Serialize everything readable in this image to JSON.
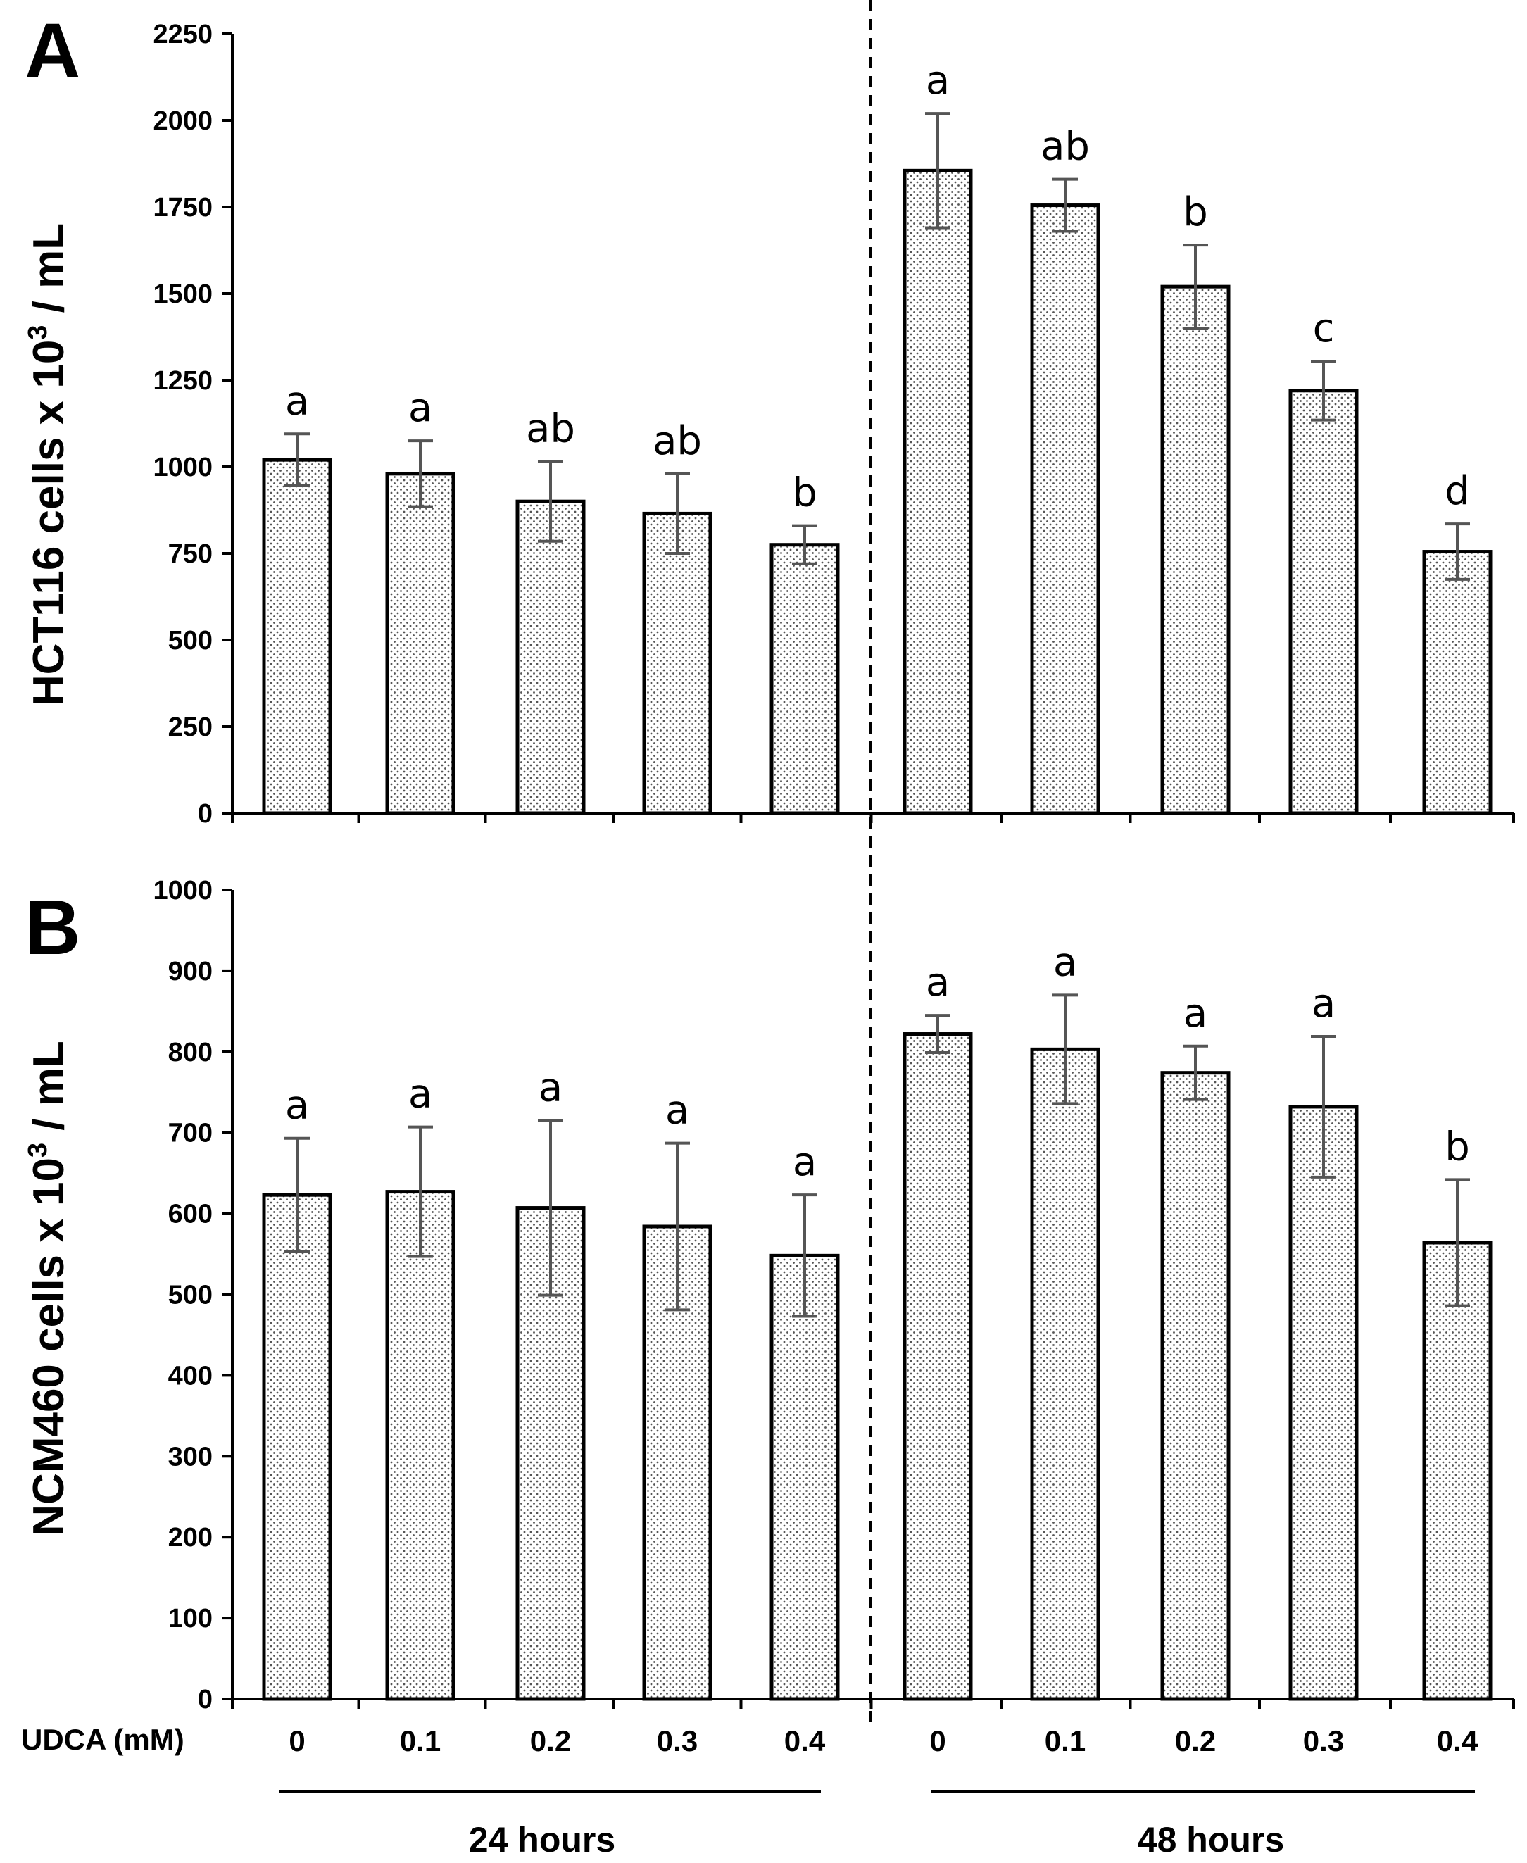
{
  "chart_data": [
    {
      "type": "bar",
      "panel_label": "A",
      "ylabel_main": "HCT116 cells x 10",
      "ylabel_sup": "3",
      "ylabel_tail": " / mL",
      "ylim": [
        0,
        2250
      ],
      "yticks": [
        "0",
        "250",
        "500",
        "750",
        "1000",
        "1250",
        "1500",
        "1750",
        "2000",
        "2250"
      ],
      "ytick_values": [
        0,
        250,
        500,
        750,
        1000,
        1250,
        1500,
        1750,
        2000,
        2250
      ],
      "categories": [
        "0",
        "0.1",
        "0.2",
        "0.3",
        "0.4",
        "0",
        "0.1",
        "0.2",
        "0.3",
        "0.4"
      ],
      "groups": [
        "24 hours",
        "48 hours"
      ],
      "values": [
        1020,
        980,
        900,
        865,
        775,
        1855,
        1755,
        1520,
        1220,
        755
      ],
      "errors": [
        75,
        95,
        115,
        115,
        55,
        165,
        75,
        120,
        85,
        80
      ],
      "significance": [
        "a",
        "a",
        "ab",
        "ab",
        "b",
        "a",
        "ab",
        "b",
        "c",
        "d"
      ]
    },
    {
      "type": "bar",
      "panel_label": "B",
      "ylabel_main": "NCM460 cells x 10",
      "ylabel_sup": "3",
      "ylabel_tail": " / mL",
      "ylim": [
        0,
        1000
      ],
      "yticks": [
        "0",
        "100",
        "200",
        "300",
        "400",
        "500",
        "600",
        "700",
        "800",
        "900",
        "1000"
      ],
      "ytick_values": [
        0,
        100,
        200,
        300,
        400,
        500,
        600,
        700,
        800,
        900,
        1000
      ],
      "categories": [
        "0",
        "0.1",
        "0.2",
        "0.3",
        "0.4",
        "0",
        "0.1",
        "0.2",
        "0.3",
        "0.4"
      ],
      "groups": [
        "24 hours",
        "48 hours"
      ],
      "values": [
        623,
        627,
        607,
        584,
        548,
        822,
        803,
        774,
        732,
        564
      ],
      "errors": [
        70,
        80,
        108,
        103,
        75,
        23,
        67,
        33,
        87,
        78
      ],
      "significance": [
        "a",
        "a",
        "a",
        "a",
        "a",
        "a",
        "a",
        "a",
        "a",
        "b"
      ]
    }
  ],
  "x_axis": {
    "label": "UDCA (mM)",
    "categories": [
      "0",
      "0.1",
      "0.2",
      "0.3",
      "0.4",
      "0",
      "0.1",
      "0.2",
      "0.3",
      "0.4"
    ],
    "groups": [
      "24 hours",
      "48 hours"
    ]
  }
}
